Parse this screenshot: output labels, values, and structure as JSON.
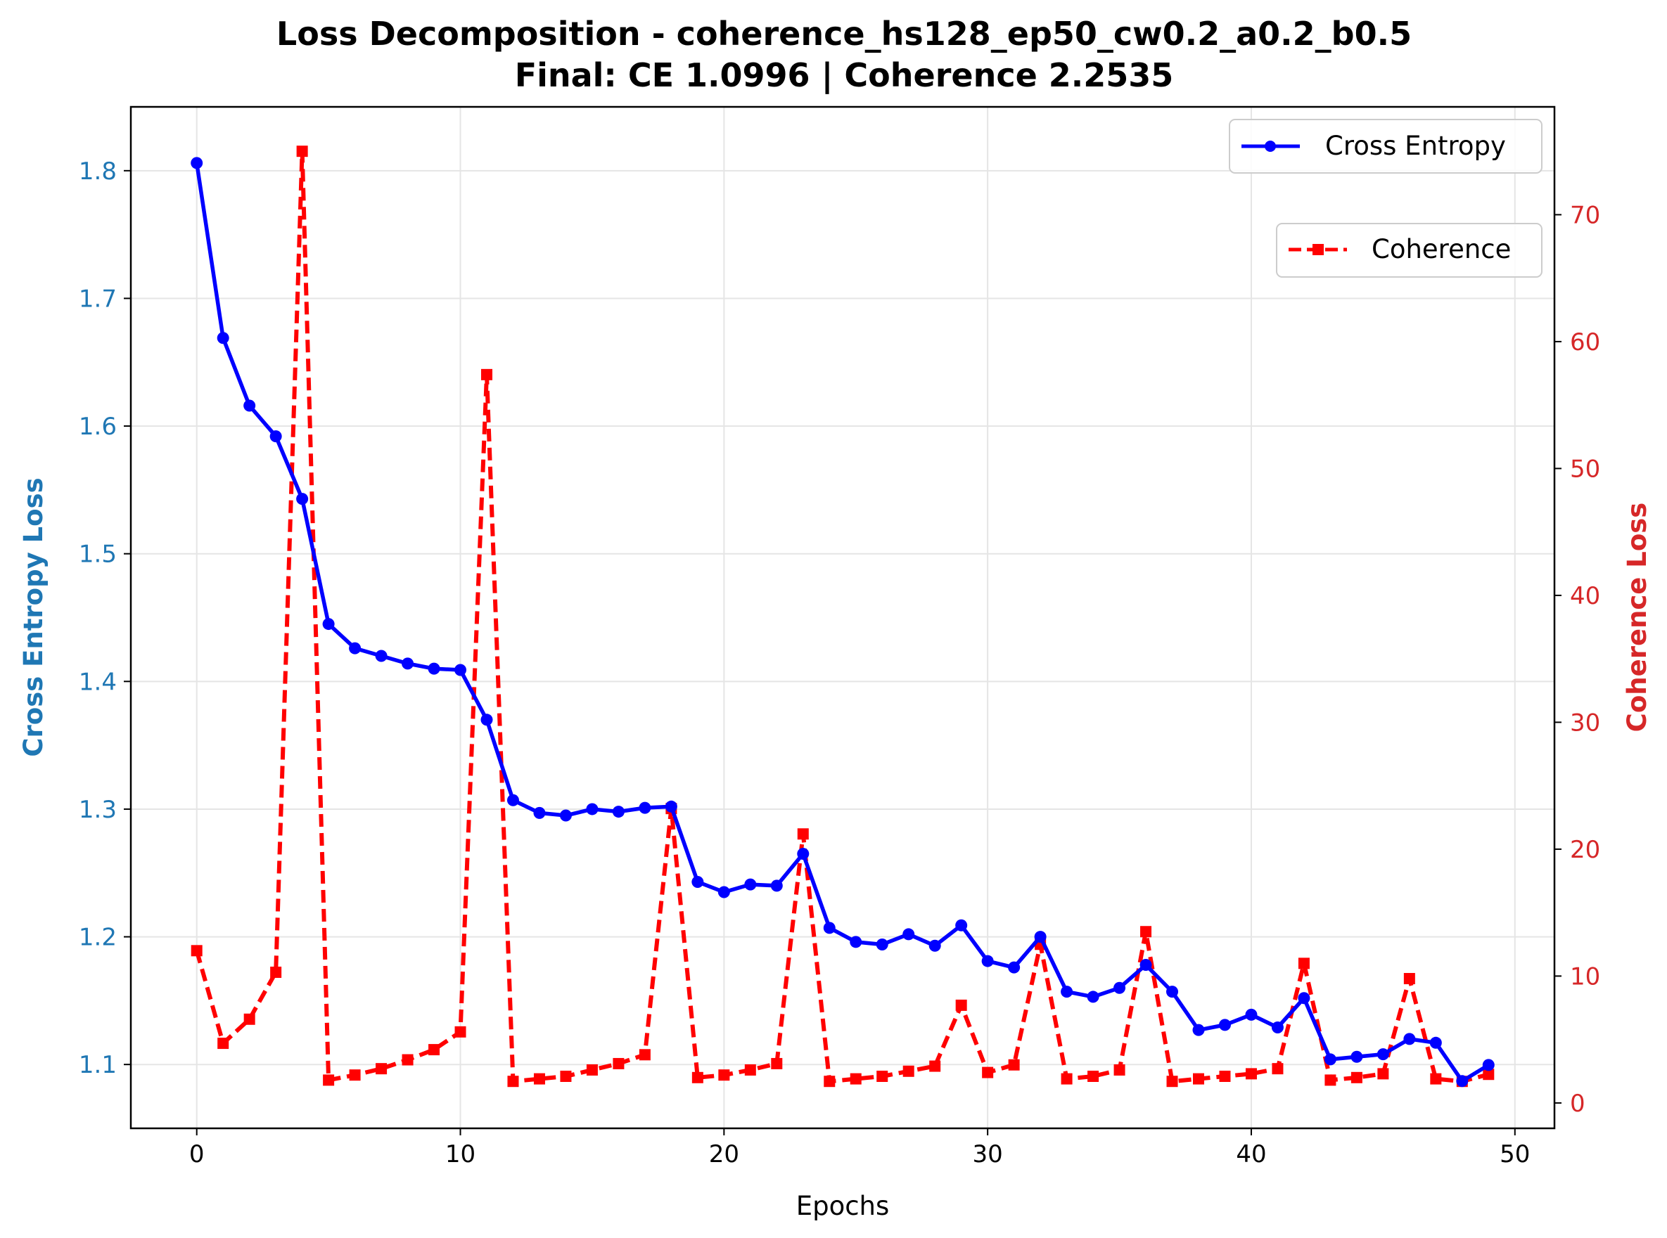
{
  "chart_data": {
    "type": "line",
    "title": "Loss Decomposition - coherence_hs128_ep50_cw0.2_a0.2_b0.5",
    "subtitle": "Final: CE 1.0996 | Coherence 2.2535",
    "xlabel": "Epochs",
    "ylabel_left": "Cross Entropy Loss",
    "ylabel_right": "Coherence Loss",
    "xlim": [
      -2.5,
      51.5
    ],
    "ylim_left": [
      1.05,
      1.85
    ],
    "ylim_right": [
      -2,
      78.5
    ],
    "xticks": [
      "0",
      "10",
      "20",
      "30",
      "40",
      "50"
    ],
    "yticks_left": [
      "1.1",
      "1.2",
      "1.3",
      "1.4",
      "1.5",
      "1.6",
      "1.7",
      "1.8"
    ],
    "yticks_right": [
      "0",
      "10",
      "20",
      "30",
      "40",
      "50",
      "60",
      "70"
    ],
    "grid": true,
    "colors": {
      "ce_line": "#0000ff",
      "coh_line": "#ff0000",
      "left_axis_text": "#1f77b4",
      "right_axis_text": "#d62728",
      "grid": "#e5e5e5"
    },
    "legends": [
      {
        "label": "Cross Entropy",
        "placement": "top-right"
      },
      {
        "label": "Coherence",
        "placement": "upper-right"
      }
    ],
    "x": [
      0,
      1,
      2,
      3,
      4,
      5,
      6,
      7,
      8,
      9,
      10,
      11,
      12,
      13,
      14,
      15,
      16,
      17,
      18,
      19,
      20,
      21,
      22,
      23,
      24,
      25,
      26,
      27,
      28,
      29,
      30,
      31,
      32,
      33,
      34,
      35,
      36,
      37,
      38,
      39,
      40,
      41,
      42,
      43,
      44,
      45,
      46,
      47,
      48,
      49
    ],
    "series": [
      {
        "name": "Cross Entropy",
        "axis": "left",
        "values": [
          1.806,
          1.669,
          1.616,
          1.592,
          1.543,
          1.445,
          1.426,
          1.42,
          1.414,
          1.41,
          1.409,
          1.37,
          1.307,
          1.297,
          1.295,
          1.3,
          1.298,
          1.301,
          1.302,
          1.243,
          1.235,
          1.241,
          1.24,
          1.265,
          1.207,
          1.196,
          1.194,
          1.202,
          1.193,
          1.209,
          1.181,
          1.176,
          1.2,
          1.157,
          1.153,
          1.16,
          1.178,
          1.157,
          1.127,
          1.131,
          1.139,
          1.129,
          1.152,
          1.104,
          1.106,
          1.108,
          1.12,
          1.117,
          1.087,
          1.0996
        ]
      },
      {
        "name": "Coherence",
        "axis": "right",
        "values": [
          12.0,
          4.7,
          6.6,
          10.3,
          75.0,
          1.8,
          2.2,
          2.7,
          3.4,
          4.2,
          5.6,
          57.4,
          1.7,
          1.9,
          2.1,
          2.6,
          3.1,
          3.8,
          23.2,
          2.0,
          2.2,
          2.6,
          3.1,
          21.2,
          1.7,
          1.9,
          2.1,
          2.5,
          2.9,
          7.7,
          2.4,
          3.0,
          12.5,
          1.9,
          2.1,
          2.6,
          13.5,
          1.7,
          1.9,
          2.1,
          2.3,
          2.7,
          11.0,
          1.8,
          2.0,
          2.3,
          9.8,
          1.9,
          1.7,
          2.2535
        ]
      }
    ]
  }
}
